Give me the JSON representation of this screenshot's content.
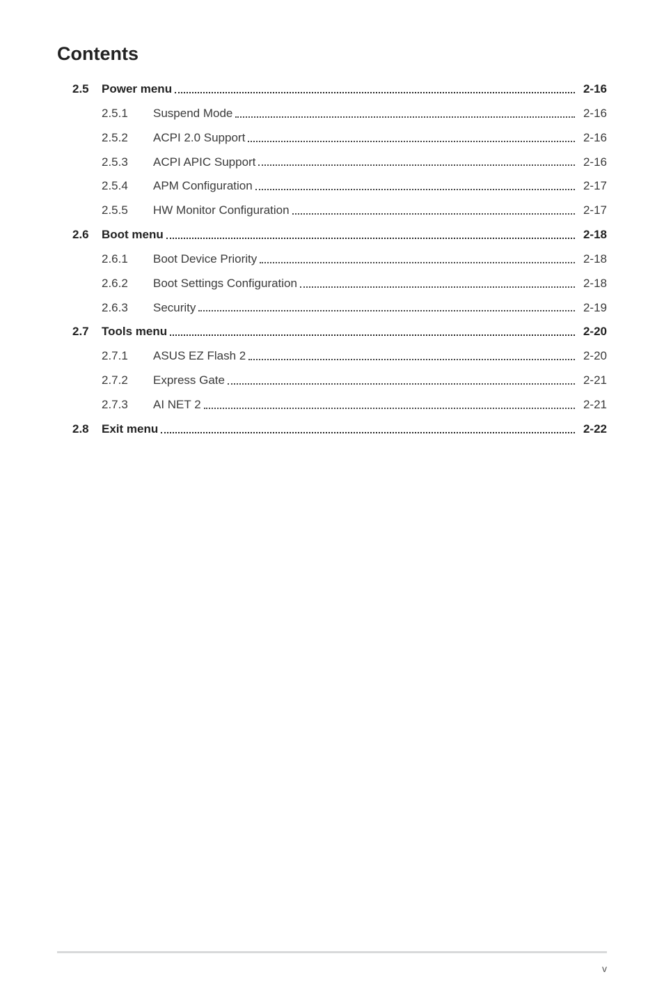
{
  "title": "Contents",
  "page_number": "v",
  "footer_rule_color": "#d8d9da",
  "text_color": "#3a3a3a",
  "bold_color": "#222222",
  "font_family": "Arial, Helvetica, sans-serif",
  "toc": [
    {
      "type": "section",
      "num": "2.5",
      "label": "Power menu",
      "page": "2-16"
    },
    {
      "type": "sub",
      "num": "2.5.1",
      "label": "Suspend Mode",
      "page": "2-16"
    },
    {
      "type": "sub",
      "num": "2.5.2",
      "label": "ACPI 2.0 Support",
      "page": "2-16"
    },
    {
      "type": "sub",
      "num": "2.5.3",
      "label": "ACPI APIC Support",
      "page": "2-16"
    },
    {
      "type": "sub",
      "num": "2.5.4",
      "label": "APM Configuration",
      "page": "2-17"
    },
    {
      "type": "sub",
      "num": "2.5.5",
      "label": "HW Monitor Configuration",
      "page": "2-17"
    },
    {
      "type": "section",
      "num": "2.6",
      "label": "Boot menu",
      "page": "2-18"
    },
    {
      "type": "sub",
      "num": "2.6.1",
      "label": "Boot Device Priority",
      "page": "2-18"
    },
    {
      "type": "sub",
      "num": "2.6.2",
      "label": "Boot Settings Configuration",
      "page": "2-18"
    },
    {
      "type": "sub",
      "num": "2.6.3",
      "label": "Security",
      "page": "2-19"
    },
    {
      "type": "section",
      "num": "2.7",
      "label": "Tools menu",
      "page": "2-20"
    },
    {
      "type": "sub",
      "num": "2.7.1",
      "label": "ASUS EZ Flash 2",
      "page": "2-20"
    },
    {
      "type": "sub",
      "num": "2.7.2",
      "label": "Express Gate",
      "page": "2-21"
    },
    {
      "type": "sub",
      "num": "2.7.3",
      "label": "AI NET 2",
      "page": "2-21"
    },
    {
      "type": "section",
      "num": "2.8",
      "label": "Exit menu",
      "page": "2-22"
    }
  ]
}
